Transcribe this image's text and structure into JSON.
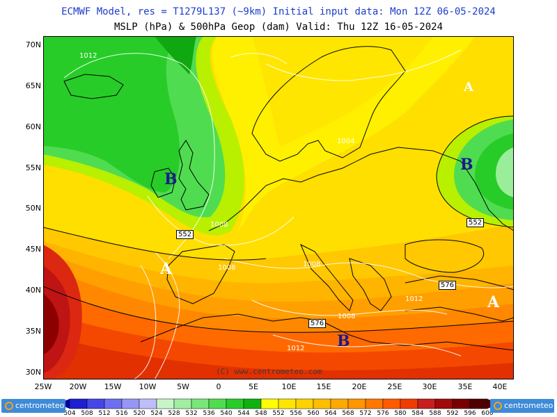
{
  "header": {
    "line1": "ECMWF Model, res = T1279L137 (~9km)    Initial input data: Mon 12Z 06-05-2024",
    "line2": "MSLP (hPa) & 500hPa Geop (dam)  Valid: Thu 12Z 16-05-2024"
  },
  "axes": {
    "lat_labels": [
      "70N",
      "65N",
      "60N",
      "55N",
      "50N",
      "45N",
      "40N",
      "35N",
      "30N"
    ],
    "lon_labels": [
      "25W",
      "20W",
      "15W",
      "10W",
      "5W",
      "0",
      "5E",
      "10E",
      "15E",
      "20E",
      "25E",
      "30E",
      "35E",
      "40E"
    ]
  },
  "pressure_centers": [
    {
      "letter": "B",
      "type": "low"
    },
    {
      "letter": "B",
      "type": "low"
    },
    {
      "letter": "B",
      "type": "low"
    },
    {
      "letter": "A",
      "type": "high"
    },
    {
      "letter": "A",
      "type": "high"
    },
    {
      "letter": "A",
      "type": "high"
    }
  ],
  "isobar_labels": [
    "1012",
    "1004",
    "1008",
    "1008",
    "1008",
    "1008",
    "1012",
    "1012"
  ],
  "geopotential_labels": [
    "552",
    "552",
    "576",
    "576"
  ],
  "colorbar": {
    "values": [
      "504",
      "508",
      "512",
      "516",
      "520",
      "524",
      "528",
      "532",
      "536",
      "540",
      "544",
      "548",
      "552",
      "556",
      "560",
      "564",
      "568",
      "572",
      "576",
      "580",
      "584",
      "588",
      "592",
      "596",
      "600"
    ],
    "colors": [
      "#0000a0",
      "#1f1fd0",
      "#4646e6",
      "#6e6ef0",
      "#9696f6",
      "#bebefa",
      "#c8f5c8",
      "#a0eea0",
      "#78e678",
      "#50dc50",
      "#28cc28",
      "#10b010",
      "#ffff00",
      "#ffe600",
      "#ffd200",
      "#ffbe00",
      "#ffaa00",
      "#ff9600",
      "#ff7800",
      "#ff5a00",
      "#f03c00",
      "#c81e1e",
      "#a00a0a",
      "#780000",
      "#500000"
    ]
  },
  "logo": {
    "text": "centrometeo"
  },
  "copyright": "(C) www.centrometeo.com"
}
